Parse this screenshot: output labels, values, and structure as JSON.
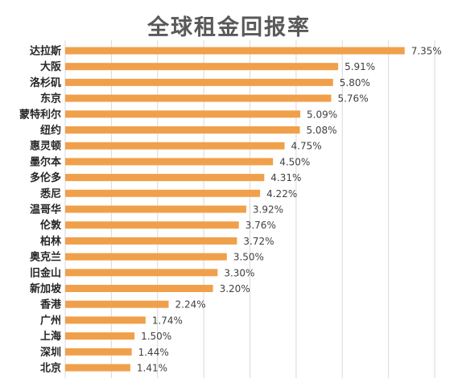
{
  "chart_data": {
    "type": "bar",
    "orientation": "horizontal",
    "title": "全球租金回报率",
    "xlabel": "",
    "ylabel": "",
    "value_format": "percent_2dp",
    "xlim": [
      0,
      8
    ],
    "grid": true,
    "bar_color": "#f0a04b",
    "categories": [
      "达拉斯",
      "大阪",
      "洛杉矶",
      "东京",
      "蒙特利尔",
      "纽约",
      "惠灵顿",
      "墨尔本",
      "多伦多",
      "悉尼",
      "温哥华",
      "伦敦",
      "柏林",
      "奥克兰",
      "旧金山",
      "新加坡",
      "香港",
      "广州",
      "上海",
      "深圳",
      "北京"
    ],
    "values": [
      7.35,
      5.91,
      5.8,
      5.76,
      5.09,
      5.08,
      4.75,
      4.5,
      4.31,
      4.22,
      3.92,
      3.76,
      3.72,
      3.5,
      3.3,
      3.2,
      2.24,
      1.74,
      1.5,
      1.44,
      1.41
    ],
    "value_labels": [
      "7.35%",
      "5.91%",
      "5.80%",
      "5.76%",
      "5.09%",
      "5.08%",
      "4.75%",
      "4.50%",
      "4.31%",
      "4.22%",
      "3.92%",
      "3.76%",
      "3.72%",
      "3.50%",
      "3.30%",
      "3.20%",
      "2.24%",
      "1.74%",
      "1.50%",
      "1.44%",
      "1.41%"
    ]
  }
}
